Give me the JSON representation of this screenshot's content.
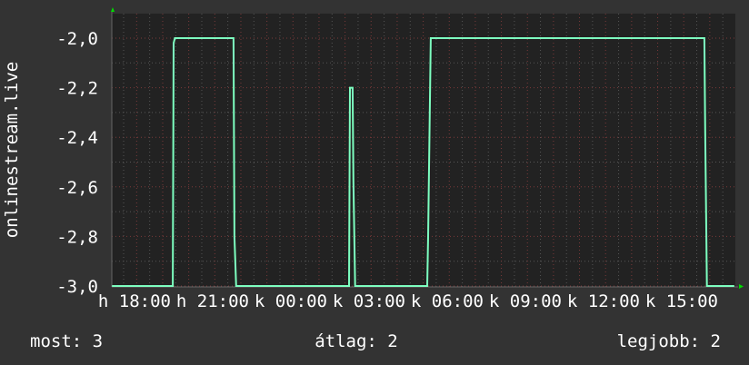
{
  "chart_data": {
    "type": "line",
    "title": "",
    "ylabel": "onlinestream.live",
    "xlabel": "",
    "ylim": [
      -3.0,
      -1.9
    ],
    "yticks": [
      "-2,0",
      "-2,2",
      "-2,4",
      "-2,6",
      "-2,8",
      "-3,0"
    ],
    "ytick_values": [
      -2.0,
      -2.2,
      -2.4,
      -2.6,
      -2.8,
      -3.0
    ],
    "xticks": [
      "h 18:00",
      "h 21:00",
      "k 00:00",
      "k 03:00",
      "k 06:00",
      "k 09:00",
      "k 12:00",
      "k 15:00"
    ],
    "xtick_times": [
      "18:00",
      "21:00",
      "00:00",
      "03:00",
      "06:00",
      "09:00",
      "12:00",
      "15:00"
    ],
    "xlim": [
      "16:45",
      "16:38"
    ],
    "grid": true,
    "colors": {
      "line": "#7dffc0",
      "plot_bg": "#222222",
      "background": "#333333",
      "major_grid": "#7a3a3a",
      "minor_grid": "#555555",
      "arrow": "#00dd00"
    },
    "series": [
      {
        "points": [
          [
            "16:45",
            -3.0
          ],
          [
            "19:05",
            -3.0
          ],
          [
            "19:07",
            -2.02
          ],
          [
            "19:10",
            -2.0
          ],
          [
            "21:25",
            -2.0
          ],
          [
            "21:27",
            -2.8
          ],
          [
            "21:31",
            -3.0
          ],
          [
            "01:51",
            -3.0
          ],
          [
            "01:53",
            -2.2
          ],
          [
            "01:59",
            -2.2
          ],
          [
            "02:01",
            -2.58
          ],
          [
            "02:05",
            -3.0
          ],
          [
            "04:51",
            -3.0
          ],
          [
            "04:53",
            -2.8
          ],
          [
            "04:59",
            -2.0
          ],
          [
            "15:29",
            -2.0
          ],
          [
            "15:31",
            -2.37
          ],
          [
            "15:35",
            -3.0
          ],
          [
            "16:38",
            -3.0
          ]
        ]
      }
    ]
  },
  "legend": {
    "current": "most: 3",
    "average": "átlag: 2",
    "max": "legjobb: 2"
  }
}
